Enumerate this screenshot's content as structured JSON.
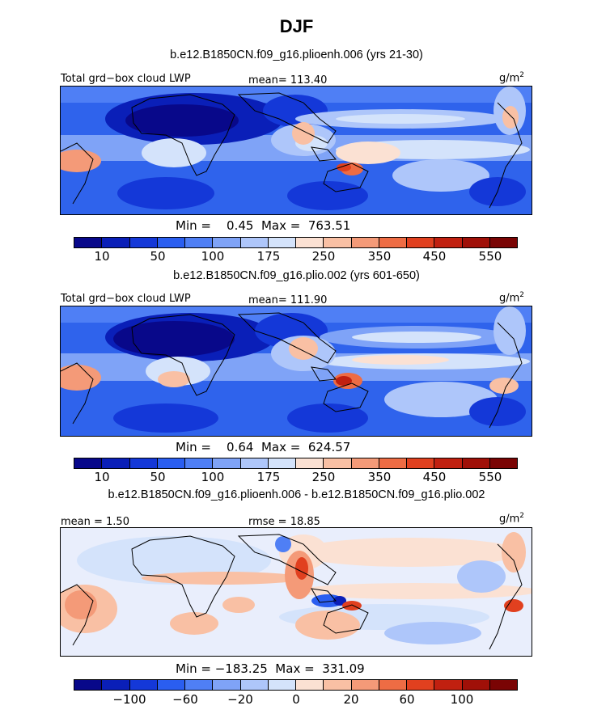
{
  "title": "DJF",
  "units": "g/m",
  "units_exp": "2",
  "panels": [
    {
      "case": "b.e12.B1850CN.f09_g16.plioenh.006 (yrs 21-30)",
      "left_label": "Total grd−box cloud LWP",
      "center_label": "mean=  113.40",
      "minmax": "Min =    0.45  Max =  763.51",
      "ticks": [
        "10",
        "50",
        "100",
        "175",
        "250",
        "350",
        "450",
        "550"
      ]
    },
    {
      "case": "b.e12.B1850CN.f09_g16.plio.002 (yrs 601-650)",
      "left_label": "Total grd−box cloud LWP",
      "center_label": "mean=  111.90",
      "minmax": "Min =    0.64  Max =  624.57",
      "ticks": [
        "10",
        "50",
        "100",
        "175",
        "250",
        "350",
        "450",
        "550"
      ]
    },
    {
      "case": "b.e12.B1850CN.f09_g16.plioenh.006 - b.e12.B1850CN.f09_g16.plio.002",
      "left_label": "mean =    1.50",
      "center_label": "rmse =   18.85",
      "minmax": "Min = −183.25  Max =  331.09",
      "ticks": [
        "−100",
        "−60",
        "−20",
        "0",
        "20",
        "60",
        "100"
      ]
    }
  ],
  "colors": {
    "abs_scale": [
      "#08088a",
      "#0a1fb8",
      "#1438d8",
      "#2a5ef0",
      "#4f7ff5",
      "#7fa3f7",
      "#aec6fa",
      "#d4e3fb",
      "#fbe1d3",
      "#f9c0a4",
      "#f49a78",
      "#ee6c44",
      "#e1401f",
      "#c12010",
      "#a01008",
      "#7a0404"
    ],
    "diff_scale": [
      "#08088a",
      "#0a1fb8",
      "#1438d8",
      "#2a5ef0",
      "#4f7ff5",
      "#7fa3f7",
      "#aec6fa",
      "#d4e3fb",
      "#fbe1d3",
      "#f9c0a4",
      "#f49a78",
      "#ee6c44",
      "#e1401f",
      "#c12010",
      "#a01008",
      "#7a0404"
    ]
  },
  "chart_data": [
    {
      "type": "heatmap",
      "title": "b.e12.B1850CN.f09_g16.plioenh.006 (yrs 21-30)",
      "variable": "Total grd-box cloud LWP",
      "units": "g/m2",
      "mean": 113.4,
      "min": 0.45,
      "max": 763.51,
      "colorbar_levels": [
        10,
        50,
        100,
        175,
        250,
        350,
        450,
        550
      ]
    },
    {
      "type": "heatmap",
      "title": "b.e12.B1850CN.f09_g16.plio.002 (yrs 601-650)",
      "variable": "Total grd-box cloud LWP",
      "units": "g/m2",
      "mean": 111.9,
      "min": 0.64,
      "max": 624.57,
      "colorbar_levels": [
        10,
        50,
        100,
        175,
        250,
        350,
        450,
        550
      ]
    },
    {
      "type": "heatmap",
      "title": "b.e12.B1850CN.f09_g16.plioenh.006 - b.e12.B1850CN.f09_g16.plio.002",
      "units": "g/m2",
      "mean": 1.5,
      "rmse": 18.85,
      "min": -183.25,
      "max": 331.09,
      "colorbar_levels": [
        -100,
        -60,
        -20,
        0,
        20,
        60,
        100
      ]
    }
  ]
}
